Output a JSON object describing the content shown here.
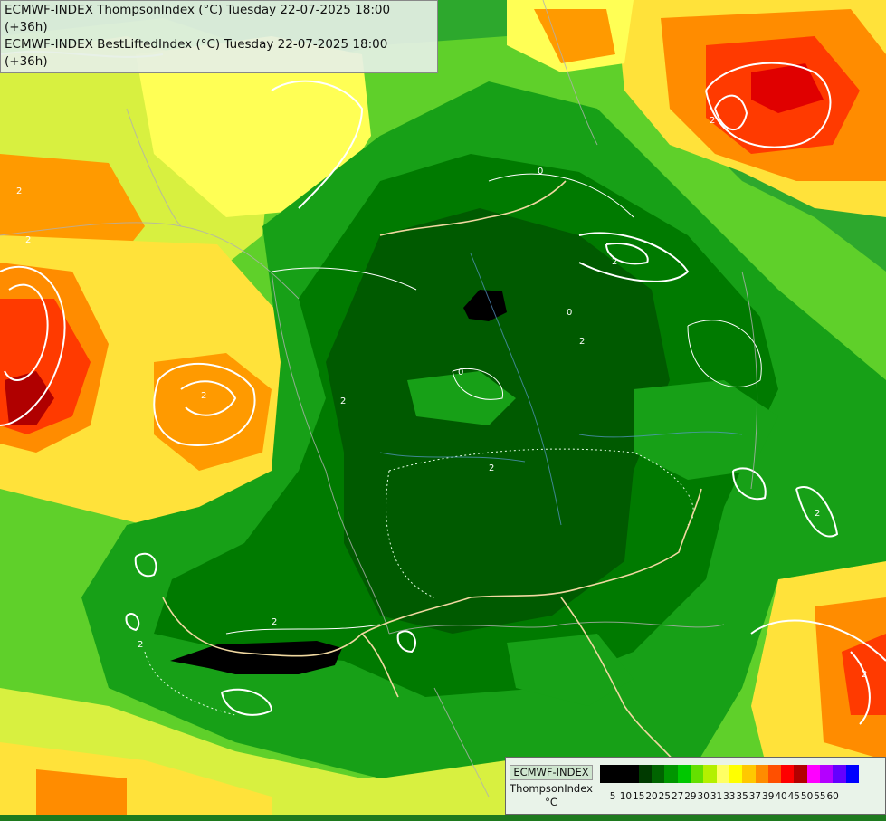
{
  "header": {
    "line1": "ECMWF-INDEX ThompsonIndex (°C) Tuesday 22-07-2025 18:00 (+36h)",
    "line2": "ECMWF-INDEX BestLiftedIndex (°C) Tuesday 22-07-2025 18:00 (+36h)"
  },
  "legend": {
    "title": "ECMWF-INDEX",
    "subtitle": "ThompsonIndex",
    "unit": "°C",
    "ticks": [
      "5",
      "10",
      "15",
      "20",
      "25",
      "27",
      "29",
      "30",
      "31",
      "33",
      "35",
      "37",
      "39",
      "40",
      "45",
      "50",
      "55",
      "60"
    ],
    "colors": [
      "#000000",
      "#000000",
      "#000000",
      "#003a00",
      "#006400",
      "#009600",
      "#00c800",
      "#64e000",
      "#b4f000",
      "#ffff64",
      "#ffff00",
      "#ffc800",
      "#ff8c00",
      "#ff5000",
      "#ff0000",
      "#b40000",
      "#ff00ff",
      "#b400ff",
      "#6400ff",
      "#0000ff"
    ]
  },
  "contour_labels": [
    "2",
    "2",
    "2",
    "2",
    "0",
    "0",
    "0",
    "2",
    "2",
    "2",
    "2",
    "2",
    "2",
    "2",
    "2"
  ]
}
